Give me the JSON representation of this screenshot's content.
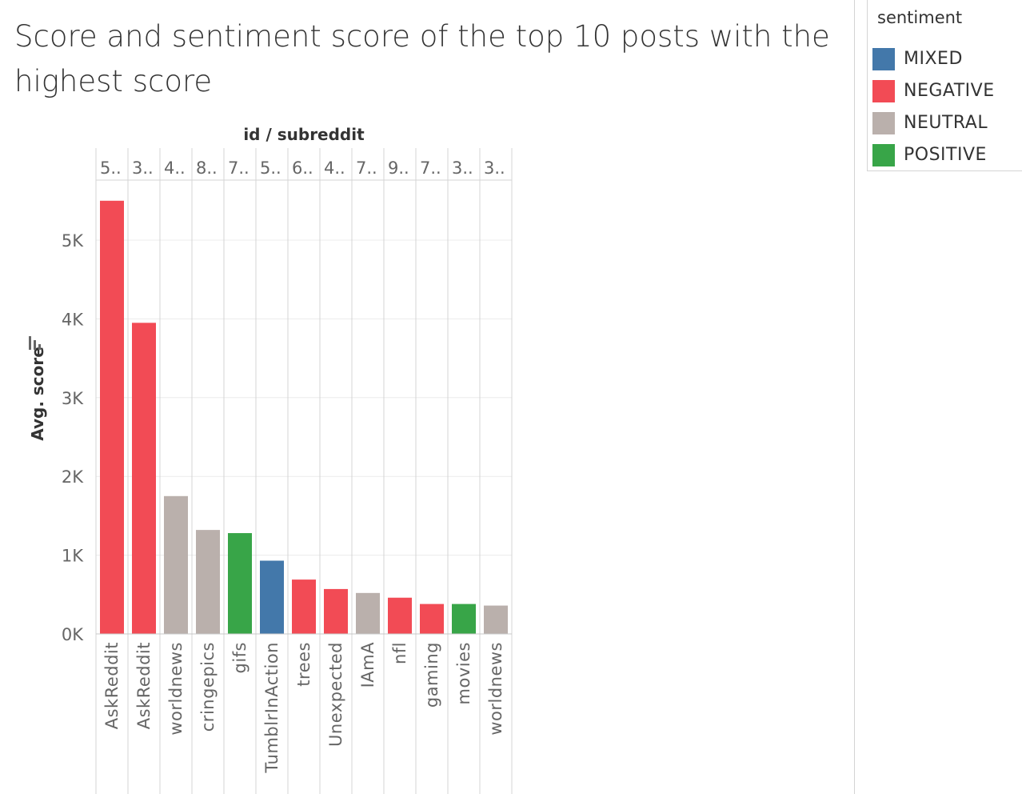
{
  "title": "Score and sentiment score of the top 10 posts with the highest score",
  "legend": {
    "title": "sentiment",
    "items": [
      {
        "label": "MIXED",
        "color": "#4378aa"
      },
      {
        "label": "NEGATIVE",
        "color": "#f24b55"
      },
      {
        "label": "NEUTRAL",
        "color": "#bab0ac"
      },
      {
        "label": "POSITIVE",
        "color": "#38a548"
      }
    ]
  },
  "chart_data": {
    "type": "bar",
    "column_header": "id / subreddit",
    "ylabel": "Avg. score",
    "ylim": [
      0,
      5700
    ],
    "yticks": [
      0,
      1000,
      2000,
      3000,
      4000,
      5000
    ],
    "ytick_labels": [
      "0K",
      "1K",
      "2K",
      "3K",
      "4K",
      "5K"
    ],
    "grid": true,
    "legend_position": "top-right",
    "ids": [
      "5..",
      "3..",
      "4..",
      "8..",
      "7..",
      "5..",
      "6..",
      "4..",
      "7..",
      "9..",
      "7..",
      "3..",
      "3.."
    ],
    "categories": [
      "AskReddit",
      "AskReddit",
      "worldnews",
      "cringepics",
      "gifs",
      "TumblrInAction",
      "trees",
      "Unexpected",
      "IAmA",
      "nfl",
      "gaming",
      "movies",
      "worldnews"
    ],
    "values": [
      5500,
      3950,
      1750,
      1320,
      1280,
      930,
      690,
      570,
      520,
      460,
      380,
      380,
      360
    ],
    "sentiment": [
      "NEGATIVE",
      "NEGATIVE",
      "NEUTRAL",
      "NEUTRAL",
      "POSITIVE",
      "MIXED",
      "NEGATIVE",
      "NEGATIVE",
      "NEUTRAL",
      "NEGATIVE",
      "NEGATIVE",
      "POSITIVE",
      "NEUTRAL"
    ]
  }
}
